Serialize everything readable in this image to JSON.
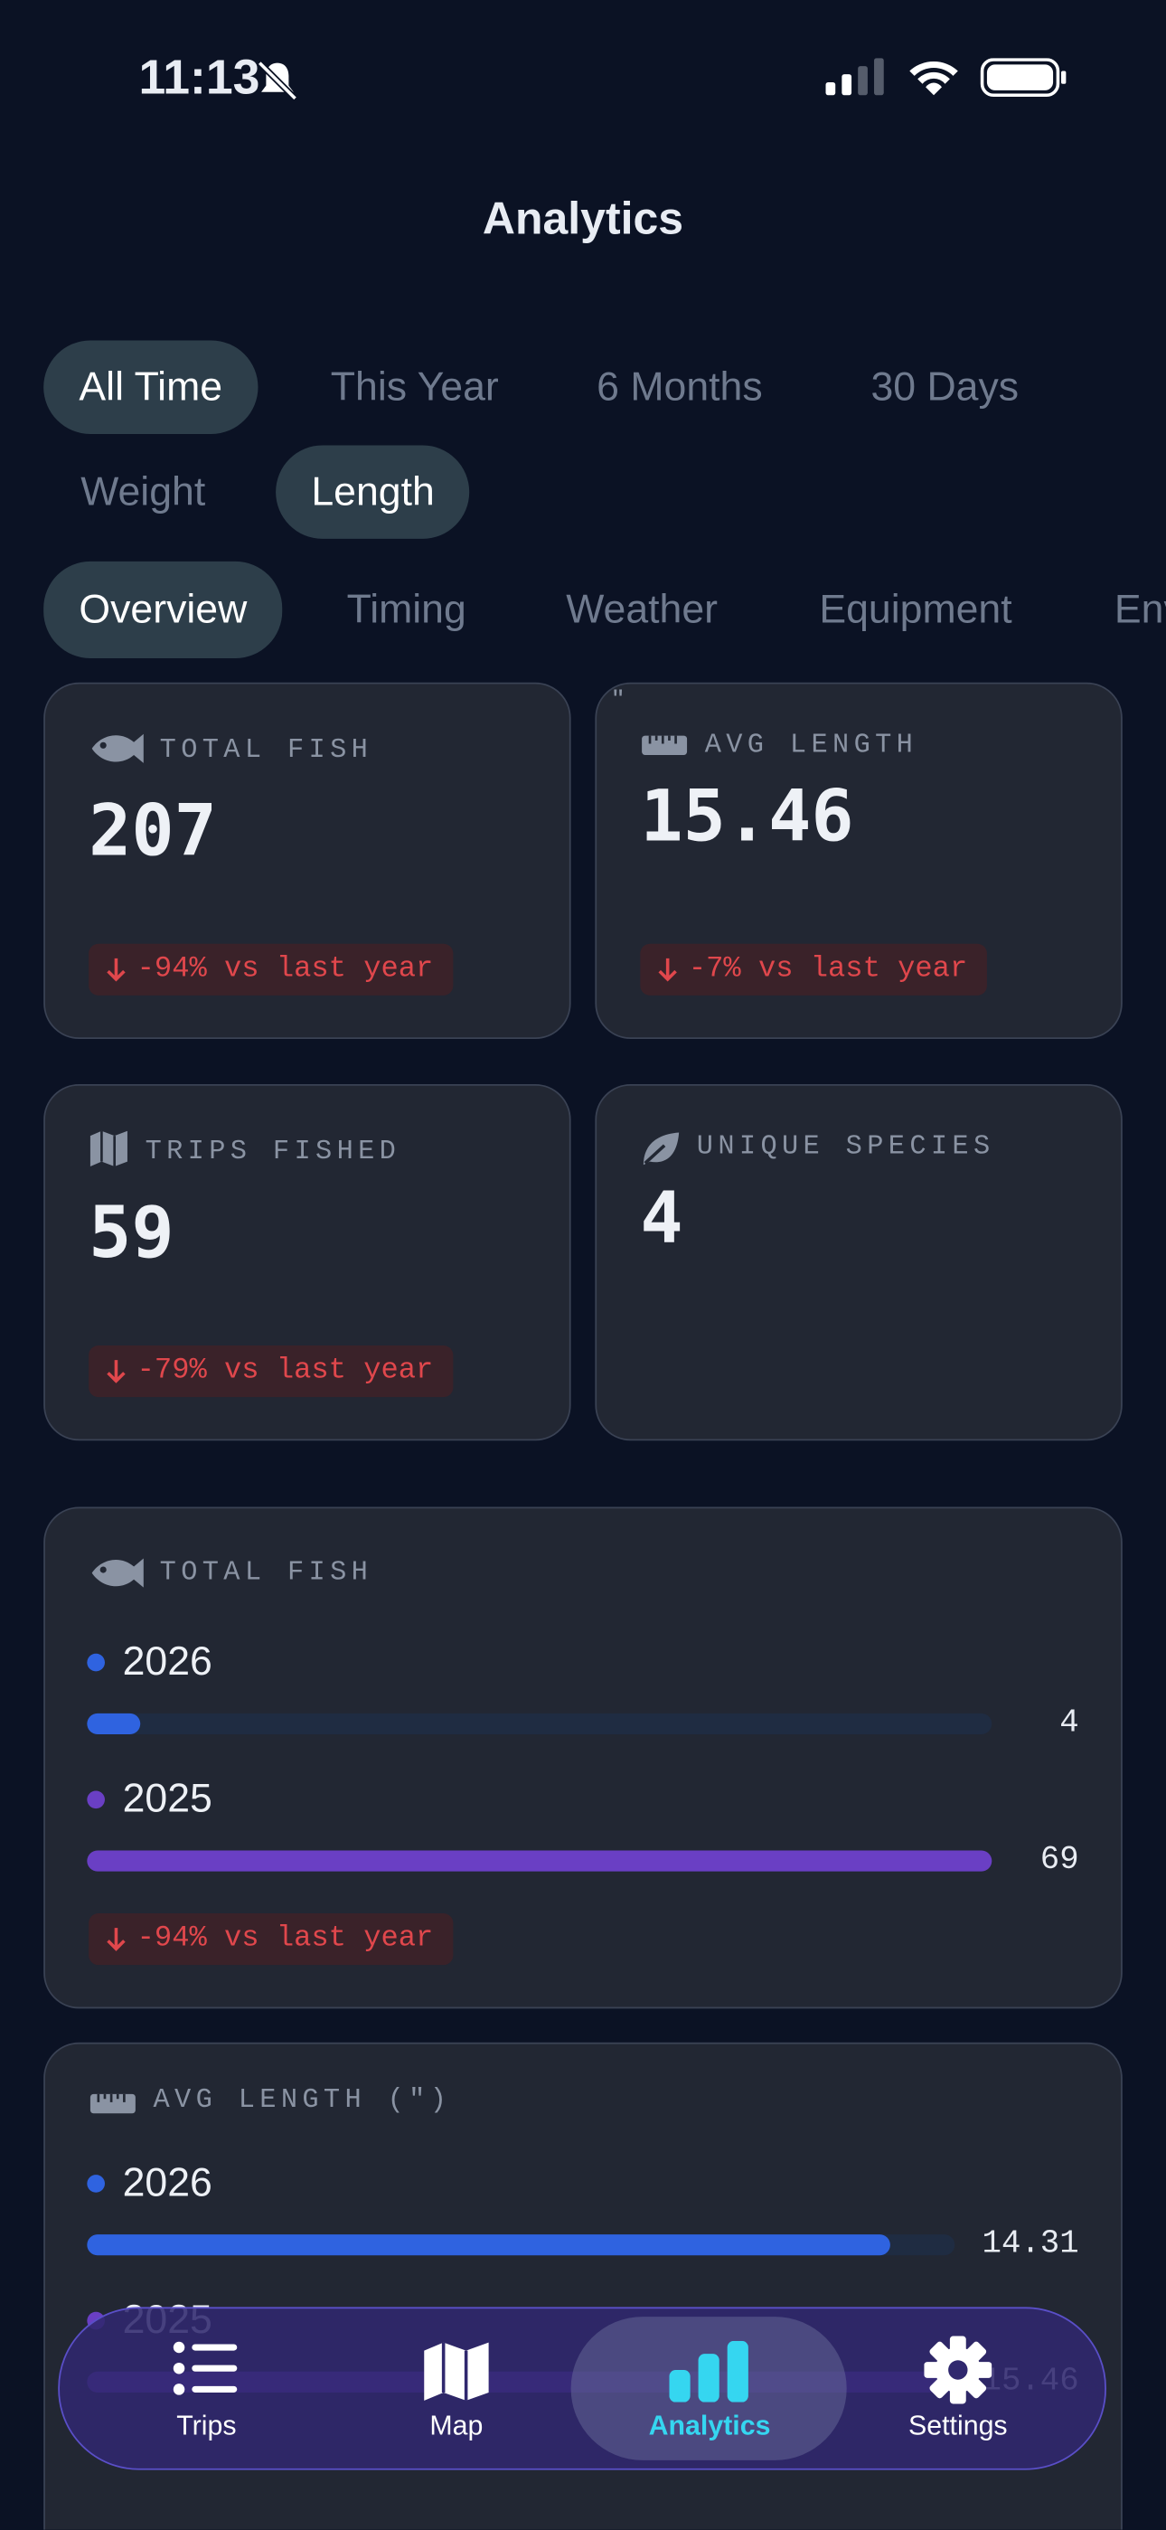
{
  "status": {
    "time": "11:13"
  },
  "header": {
    "title": "Analytics"
  },
  "time_filters": {
    "items": [
      "All Time",
      "This Year",
      "6 Months",
      "30 Days"
    ],
    "selected": 0
  },
  "metric_filters": {
    "items": [
      "Weight",
      "Length"
    ],
    "selected": 1
  },
  "tabs": {
    "items": [
      "Overview",
      "Timing",
      "Weather",
      "Equipment",
      "Environment"
    ],
    "selected": 0
  },
  "stats": [
    {
      "label": "TOTAL FISH",
      "value": "207",
      "change": "-94% vs last year"
    },
    {
      "label": "AVG LENGTH",
      "value": "15.46",
      "unit": "\"",
      "change": "-7% vs last year"
    },
    {
      "label": "TRIPS FISHED",
      "value": "59",
      "change": "-79% vs last year"
    },
    {
      "label": "UNIQUE SPECIES",
      "value": "4"
    }
  ],
  "comparisons": [
    {
      "title": "TOTAL FISH",
      "rows": [
        {
          "year": "2026",
          "value": 4,
          "color": "#2f63e0"
        },
        {
          "year": "2025",
          "value": 69,
          "color": "#6a3fc4"
        }
      ],
      "change": "-94% vs last year"
    },
    {
      "title": "AVG LENGTH (\")",
      "rows": [
        {
          "year": "2026",
          "value": 14.31,
          "color": "#2f63e0"
        },
        {
          "year": "2025",
          "value": 15.46,
          "color": "#6a3fc4"
        }
      ]
    }
  ],
  "nav": {
    "items": [
      "Trips",
      "Map",
      "Analytics",
      "Settings"
    ],
    "selected": 2
  }
}
